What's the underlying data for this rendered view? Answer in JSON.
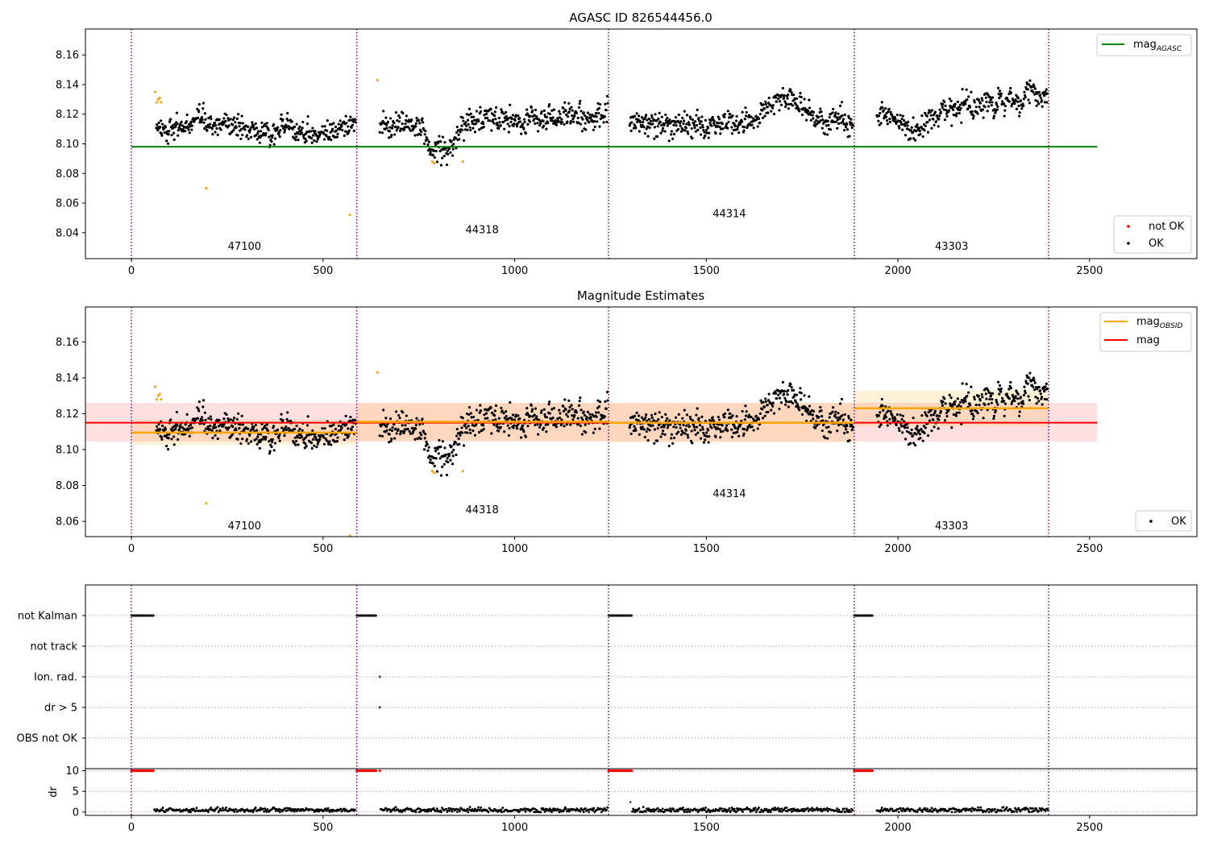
{
  "chart_data": [
    {
      "type": "scatter",
      "title": "AGASC ID 826544456.0",
      "xlim": [
        -120,
        2780
      ],
      "ylim": [
        8.0225,
        8.1775
      ],
      "xticks": [
        0,
        500,
        1000,
        1500,
        2000,
        2500
      ],
      "yticks": [
        8.04,
        8.06,
        8.08,
        8.1,
        8.12,
        8.14,
        8.16
      ],
      "ytick_labels": [
        "8.04",
        "8.06",
        "8.08",
        "8.10",
        "8.12",
        "8.14",
        "8.16"
      ],
      "grid": false,
      "obs_boundaries": [
        0,
        588,
        1245,
        1886,
        2393
      ],
      "obs_labels": [
        {
          "text": "47100",
          "x": 295,
          "y": 8.0285
        },
        {
          "text": "44318",
          "x": 915,
          "y": 8.0395
        },
        {
          "text": "44314",
          "x": 1560,
          "y": 8.0505
        },
        {
          "text": "43303",
          "x": 2140,
          "y": 8.0285
        }
      ],
      "reference_lines": [
        {
          "name": "mag",
          "subscript": "AGASC",
          "y": 8.098,
          "x": [
            0,
            2520
          ],
          "color": "#008000"
        }
      ],
      "legend_top": {
        "placement": "top-right",
        "entries": [
          {
            "label": "mag",
            "subscript": "AGASC",
            "color": "#008000",
            "marker": "line"
          }
        ]
      },
      "legend_bottom": {
        "placement": "lower-right",
        "entries": [
          {
            "label": "not OK",
            "color": "#ff0000",
            "marker": "dot"
          },
          {
            "label": "OK",
            "color": "#000000",
            "marker": "dot"
          }
        ]
      },
      "series": [
        {
          "name": "OK",
          "color": "#000000",
          "segments": [
            {
              "x": [
                65,
                585
              ],
              "base": 8.111,
              "drift": -0.002,
              "noise": 0.0055
            },
            {
              "x": [
                648,
                1243
              ],
              "base": 8.113,
              "drift": 0.006,
              "noise": 0.0065,
              "dip": {
                "x": [
                  740,
                  880
                ],
                "depth": -0.016
              }
            },
            {
              "x": [
                1300,
                1883
              ],
              "base": 8.112,
              "drift": 0.004,
              "noise": 0.0065,
              "bump": {
                "x": [
                  1620,
                  1780
                ],
                "height": 0.018
              }
            },
            {
              "x": [
                1945,
                2390
              ],
              "base": 8.118,
              "drift": 0.014,
              "noise": 0.0065,
              "dip": {
                "x": [
                  1990,
                  2090
                ],
                "depth": -0.01
              }
            }
          ]
        },
        {
          "name": "outliers",
          "color": "#ffa500",
          "points": [
            [
              62,
              8.135
            ],
            [
              66,
              8.128
            ],
            [
              70,
              8.13
            ],
            [
              74,
              8.131
            ],
            [
              77,
              8.128
            ],
            [
              195,
              8.07
            ],
            [
              570,
              8.052
            ],
            [
              642,
              8.143
            ],
            [
              785,
              8.088
            ],
            [
              790,
              8.087
            ],
            [
              865,
              8.088
            ]
          ]
        }
      ]
    },
    {
      "type": "scatter",
      "title": "Magnitude Estimates",
      "xlim": [
        -120,
        2780
      ],
      "ylim": [
        8.0515,
        8.1795
      ],
      "xticks": [
        0,
        500,
        1000,
        1500,
        2000,
        2500
      ],
      "yticks": [
        8.06,
        8.08,
        8.1,
        8.12,
        8.14,
        8.16
      ],
      "ytick_labels": [
        "8.06",
        "8.08",
        "8.10",
        "8.12",
        "8.14",
        "8.16"
      ],
      "grid": false,
      "obs_boundaries": [
        0,
        588,
        1245,
        1886,
        2393
      ],
      "obs_labels": [
        {
          "text": "47100",
          "x": 295,
          "y": 8.0555
        },
        {
          "text": "44318",
          "x": 915,
          "y": 8.0645
        },
        {
          "text": "44314",
          "x": 1560,
          "y": 8.0735
        },
        {
          "text": "43303",
          "x": 2140,
          "y": 8.0555
        }
      ],
      "mag": {
        "y": 8.115,
        "band": [
          8.1045,
          8.126
        ],
        "x": [
          -120,
          2520
        ],
        "color": "#ff0000"
      },
      "mag_obsid": [
        {
          "x": [
            0,
            588
          ],
          "y": 8.1095,
          "band": [
            8.1025,
            8.1165
          ]
        },
        {
          "x": [
            588,
            1245
          ],
          "y": 8.1155,
          "band": [
            8.105,
            8.126
          ]
        },
        {
          "x": [
            1245,
            1886
          ],
          "y": 8.115,
          "band": [
            8.104,
            8.126
          ]
        },
        {
          "x": [
            1886,
            2393
          ],
          "y": 8.123,
          "band": [
            8.113,
            8.133
          ]
        }
      ],
      "legend_top": {
        "placement": "top-right",
        "entries": [
          {
            "label": "mag",
            "subscript": "OBSID",
            "color": "#ffa500",
            "marker": "line"
          },
          {
            "label": "mag",
            "color": "#ff0000",
            "marker": "line"
          }
        ]
      },
      "legend_bottom": {
        "placement": "lower-right",
        "entries": [
          {
            "label": "OK",
            "color": "#000000",
            "marker": "dot"
          }
        ]
      }
    },
    {
      "type": "scatter",
      "xlim": [
        -120,
        2780
      ],
      "xticks": [
        0,
        500,
        1000,
        1500,
        2000,
        2500
      ],
      "obs_boundaries": [
        0,
        588,
        1245,
        1886,
        2393
      ],
      "flag_rows": [
        "not Kalman",
        "not track",
        "Ion. rad.",
        "dr > 5",
        "OBS not OK"
      ],
      "flag_points": [
        {
          "row": "not Kalman",
          "x": [
            0,
            58
          ]
        },
        {
          "row": "not Kalman",
          "x": [
            588,
            640
          ]
        },
        {
          "row": "not Kalman",
          "x": [
            1245,
            1305
          ]
        },
        {
          "row": "not Kalman",
          "x": [
            1886,
            1935
          ]
        },
        {
          "row": "Ion. rad.",
          "x": [
            648,
            648
          ]
        },
        {
          "row": "dr > 5",
          "x": [
            648,
            648
          ]
        }
      ],
      "dr": {
        "ylabel": "dr",
        "ylim": [
          -0.8,
          10.5
        ],
        "yticks": [
          0,
          5,
          10
        ],
        "clipped_value": 10,
        "clipped_segments": [
          [
            0,
            58
          ],
          [
            588,
            640
          ],
          [
            1245,
            1305
          ],
          [
            1886,
            1935
          ]
        ],
        "extra_clipped": [
          648
        ],
        "segments": [
          [
            60,
            585
          ],
          [
            650,
            1243
          ],
          [
            1307,
            1883
          ],
          [
            1945,
            2392
          ]
        ],
        "typical": 0.5
      }
    }
  ]
}
